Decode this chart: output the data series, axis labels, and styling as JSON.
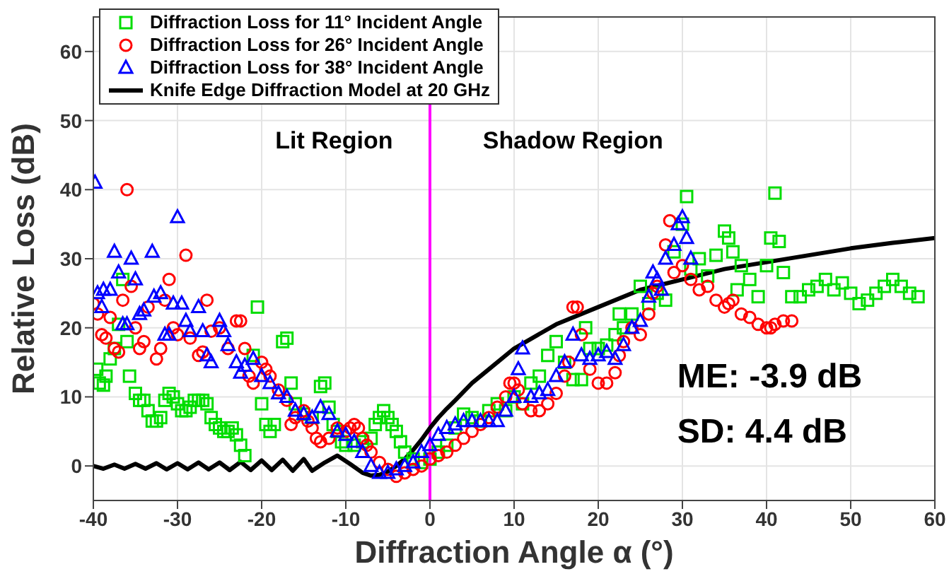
{
  "chart_data": {
    "type": "scatter",
    "xlabel": "Diffraction Angle α (°)",
    "ylabel": "Relative Loss (dB)",
    "xlim": [
      -40,
      60
    ],
    "xticks": [
      -40,
      -30,
      -20,
      -10,
      0,
      10,
      20,
      30,
      40,
      50,
      60
    ],
    "ylim": [
      -5,
      65
    ],
    "yticks": [
      0,
      10,
      20,
      30,
      40,
      50,
      60
    ],
    "grid": true,
    "legend": "top left",
    "annotations": [
      "Lit Region",
      "Shadow Region",
      "ME: -3.9 dB",
      "SD: 4.4 dB"
    ],
    "ref_lines": [
      {
        "axis": "x",
        "value": 0,
        "color": "#ff00ff"
      }
    ],
    "series": [
      {
        "name": "Diffraction Loss for 11° Incident Angle",
        "type": "scatter",
        "marker": "square",
        "color": "#00dd00",
        "x": [
          -39.6,
          -39.3,
          -38.8,
          -38.5,
          -38,
          -37.5,
          -37,
          -36.5,
          -36,
          -35.7,
          -35,
          -34.5,
          -34,
          -33.5,
          -33,
          -32.5,
          -32,
          -31.5,
          -31,
          -30.5,
          -30,
          -29.5,
          -29,
          -28.5,
          -28,
          -27.5,
          -27,
          -26.5,
          -26,
          -25.5,
          -25,
          -24.5,
          -24,
          -23.5,
          -23,
          -22.5,
          -22,
          -21,
          -20.5,
          -20,
          -19.5,
          -19,
          -18.5,
          -17.5,
          -17,
          -16.5,
          -16,
          -15,
          -14,
          -13,
          -12.5,
          -12,
          -11.5,
          -11,
          -10.5,
          -10,
          -9,
          -8,
          -7,
          -6.5,
          -6,
          -5.5,
          -5,
          -4.5,
          -4,
          -3.5,
          -3,
          -2,
          -1,
          0,
          1,
          2,
          3,
          4,
          5,
          6,
          7,
          8,
          9,
          10,
          11,
          12,
          13,
          14,
          15,
          16,
          17,
          18,
          18.5,
          19,
          20,
          21,
          22,
          22.5,
          23,
          24,
          25,
          26,
          27,
          28,
          29,
          30,
          30.5,
          31,
          32,
          33,
          34,
          35,
          35.5,
          36,
          36.5,
          37,
          38,
          39,
          40,
          40.5,
          41,
          41.5,
          42,
          43,
          44,
          45,
          46,
          47,
          48,
          49,
          50,
          51,
          52,
          53,
          54,
          55,
          56,
          57,
          58
        ],
        "values": [
          14,
          12,
          11.7,
          13,
          15.5,
          17,
          20.5,
          27,
          18,
          13,
          10.5,
          9.5,
          9.5,
          8,
          6.5,
          6.5,
          7,
          9.5,
          10.5,
          10,
          9,
          8,
          8,
          8.5,
          9.5,
          9.5,
          9.5,
          9,
          7,
          6,
          5.5,
          5,
          5,
          5.5,
          4.5,
          3,
          1.5,
          16,
          23,
          9,
          6,
          5,
          6,
          18,
          18.5,
          12,
          9,
          7.5,
          7,
          11.5,
          12,
          8.5,
          6,
          5,
          3.5,
          3,
          3,
          3.5,
          4,
          6,
          7,
          8,
          7,
          6,
          5,
          3.5,
          2,
          1,
          0.5,
          1,
          2,
          3,
          5.5,
          7.5,
          7,
          6.5,
          8,
          9,
          8,
          10,
          9,
          12,
          13,
          16,
          18,
          15,
          12.5,
          12.5,
          20,
          17,
          17,
          17.5,
          19,
          22,
          20,
          22,
          26,
          23.5,
          25,
          24,
          31,
          35,
          39,
          28.5,
          30,
          27.5,
          30.5,
          34,
          33,
          31,
          25.5,
          29,
          27,
          24.5,
          29,
          33,
          39.5,
          32.5,
          28,
          24.5,
          24.5,
          25.5,
          26,
          27,
          25.5,
          26.5,
          25,
          23.5,
          24,
          25,
          26,
          27,
          26,
          25,
          24.5
        ]
      },
      {
        "name": "Diffraction Loss for 26° Incident Angle",
        "type": "scatter",
        "marker": "circle",
        "color": "#ff0000",
        "x": [
          -40,
          -39.5,
          -39,
          -38.5,
          -38,
          -37.5,
          -37,
          -36.5,
          -36,
          -35.5,
          -35,
          -34.5,
          -34,
          -33.5,
          -32.5,
          -32,
          -31.5,
          -31,
          -30.5,
          -30,
          -29,
          -28.5,
          -27.5,
          -27,
          -26.5,
          -26,
          -25,
          -24,
          -23,
          -22.5,
          -22,
          -21.5,
          -21,
          -20,
          -19.5,
          -19,
          -18,
          -17,
          -16.5,
          -16,
          -15,
          -14.5,
          -14,
          -13.5,
          -13,
          -12,
          -11,
          -10,
          -9.5,
          -9,
          -8.5,
          -8,
          -7.5,
          -7,
          -6,
          -5,
          -4,
          -3,
          -2,
          -1,
          0,
          1,
          2,
          3,
          4,
          5,
          6,
          7,
          8,
          9,
          9.5,
          10,
          10.5,
          11,
          12,
          13,
          14,
          15,
          16,
          16.5,
          17,
          17.5,
          18,
          19,
          20,
          21,
          22,
          22.5,
          23,
          24,
          25,
          26,
          26.5,
          27,
          28,
          28.5,
          29,
          30,
          31,
          32,
          33,
          34,
          35,
          35.5,
          36,
          37,
          38,
          39,
          40,
          40.5,
          41,
          42,
          43
        ],
        "values": [
          23.5,
          22,
          19,
          18.5,
          21.5,
          17,
          16.5,
          24,
          40,
          26,
          20,
          17,
          18,
          23,
          15.5,
          17,
          24,
          27,
          20,
          19,
          30.5,
          18.5,
          16,
          16.5,
          24,
          19.5,
          20,
          17,
          21,
          21,
          17,
          13,
          12,
          15,
          14,
          13,
          11,
          9.5,
          6,
          7,
          8,
          6.5,
          5.5,
          4,
          3.5,
          4,
          5.5,
          5,
          5.5,
          6,
          5.5,
          4,
          3,
          2,
          0.5,
          -0.5,
          -1.5,
          -1,
          -0.5,
          0,
          1,
          1.5,
          2,
          3,
          4,
          5,
          6,
          7,
          8.5,
          10,
          12,
          12,
          11,
          9,
          8,
          8,
          9,
          10.5,
          13,
          15,
          23,
          23,
          19,
          14,
          12,
          12,
          13.5,
          16,
          18,
          20,
          19,
          22,
          25,
          26,
          32,
          35.5,
          28,
          29,
          27,
          25.5,
          26,
          24,
          23,
          23.5,
          24,
          22,
          21.5,
          20.5,
          20,
          20,
          20.5,
          21,
          21
        ]
      },
      {
        "name": "Diffraction Loss for 38° Incident Angle",
        "type": "scatter",
        "marker": "triangle",
        "color": "#0000ff",
        "x": [
          -39.8,
          -39.5,
          -39,
          -38.8,
          -38,
          -37.5,
          -37,
          -36.5,
          -36,
          -35.5,
          -35,
          -34.5,
          -34,
          -33,
          -32.8,
          -32,
          -31.5,
          -31,
          -30.5,
          -30,
          -29.5,
          -29,
          -28.5,
          -27.5,
          -27,
          -26.5,
          -26,
          -25,
          -24.5,
          -24,
          -23,
          -22.5,
          -22,
          -21,
          -20,
          -19,
          -18,
          -17,
          -16,
          -15,
          -14,
          -13,
          -12,
          -11,
          -10,
          -9,
          -8,
          -7,
          -6,
          -5,
          -4,
          -3,
          -2,
          -1,
          0,
          1,
          2,
          3,
          4,
          5,
          6,
          7,
          8,
          9,
          10,
          10.5,
          11,
          12,
          13,
          14,
          15,
          16,
          17,
          18,
          19,
          20,
          21,
          22,
          23,
          24,
          25,
          26,
          26.5,
          27,
          27.5,
          28,
          29,
          29.5,
          30,
          30.5,
          31
        ],
        "values": [
          41,
          25,
          23,
          25.5,
          25.5,
          31,
          28,
          20.5,
          20.5,
          30,
          27,
          22,
          22.5,
          31,
          24.5,
          25,
          19,
          19,
          23.5,
          36,
          23.5,
          21,
          19.5,
          23,
          19.5,
          16,
          15,
          21,
          19.5,
          17.5,
          15,
          13.5,
          14.5,
          15.5,
          13,
          12,
          10.5,
          10,
          8,
          7.5,
          7,
          8.5,
          7.5,
          5,
          4.5,
          3.5,
          2,
          0,
          -1,
          -1,
          -0.5,
          0,
          0.5,
          2,
          3,
          4.5,
          5.5,
          6,
          6.5,
          6.5,
          6.5,
          6.5,
          6.5,
          8,
          10,
          14,
          17,
          10,
          10.5,
          11,
          13,
          15,
          19,
          16,
          15.5,
          16,
          16.5,
          15.5,
          17.5,
          20,
          21,
          24.5,
          28,
          27,
          25.5,
          30,
          32,
          35,
          36,
          33,
          30
        ]
      },
      {
        "name": "Knife Edge Diffraction Model at 20 GHz",
        "type": "line",
        "marker": "none",
        "line_style": "solid",
        "color": "#000000",
        "x": [
          -40,
          -38.8,
          -37.5,
          -36.3,
          -35,
          -33.8,
          -32.5,
          -31.3,
          -30,
          -28.8,
          -27.5,
          -26.3,
          -25,
          -23.8,
          -22.5,
          -21.3,
          -20,
          -18.8,
          -17.5,
          -16.3,
          -15,
          -14,
          -12.5,
          -11,
          -9.5,
          -8,
          -7,
          -6,
          -5,
          -4,
          -3,
          -2,
          -1,
          0,
          1,
          2,
          3,
          5,
          7,
          10,
          15,
          20,
          25,
          30,
          35,
          40,
          45,
          50,
          55,
          60
        ],
        "values": [
          0,
          -0.4,
          0.2,
          -0.4,
          0.3,
          -0.4,
          0.4,
          -0.5,
          0.4,
          -0.5,
          0.5,
          -0.5,
          0.5,
          -0.6,
          0.6,
          -0.6,
          0.8,
          -0.6,
          0.9,
          -0.7,
          1,
          -0.7,
          0.5,
          1.5,
          0.3,
          -1,
          -1.4,
          -1.3,
          -0.8,
          0,
          1,
          2.3,
          3.8,
          5.5,
          7,
          8.3,
          9.5,
          12,
          14,
          17,
          20.5,
          23,
          25.5,
          27,
          28.5,
          29.5,
          30.5,
          31.5,
          32.3,
          33
        ]
      }
    ]
  }
}
